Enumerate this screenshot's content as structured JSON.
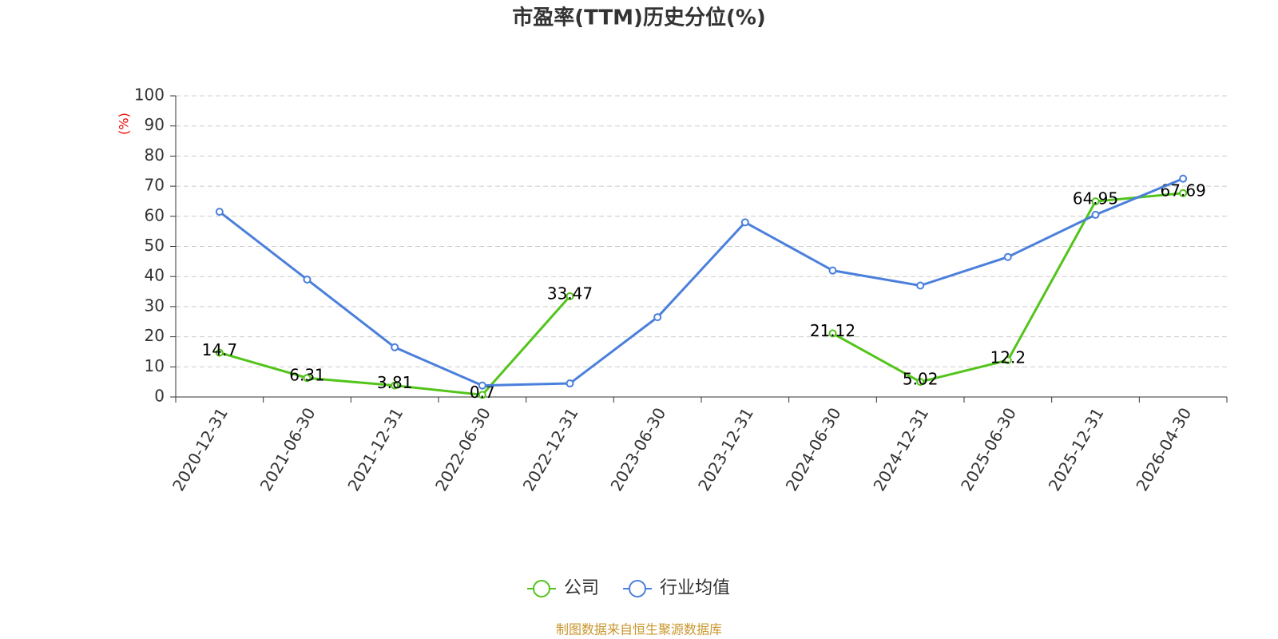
{
  "chart_data": {
    "type": "line",
    "title": "市盈率(TTM)历史分位(%)",
    "y_label": "(%)",
    "categories": [
      "2020-12-31",
      "2021-06-30",
      "2021-12-31",
      "2022-06-30",
      "2022-12-31",
      "2023-06-30",
      "2023-12-31",
      "2024-06-30",
      "2024-12-31",
      "2025-06-30",
      "2025-12-31",
      "2026-04-30"
    ],
    "series": [
      {
        "name": "公司",
        "color": "#52c41a",
        "values": [
          14.7,
          6.31,
          3.81,
          0.7,
          33.47,
          null,
          null,
          21.12,
          5.02,
          12.2,
          64.95,
          67.69
        ],
        "show_labels": true
      },
      {
        "name": "行业均值",
        "color": "#4a7fdc",
        "values": [
          61.5,
          39,
          16.5,
          3.8,
          4.5,
          26.5,
          58,
          42,
          37,
          46.5,
          60.5,
          72.5
        ],
        "show_labels": false
      }
    ],
    "ylim": [
      0,
      100
    ],
    "yticks": [
      0,
      10,
      20,
      30,
      40,
      50,
      60,
      70,
      80,
      90,
      100
    ],
    "grid": true,
    "legend": "bottom",
    "source": "制图数据来自恒生聚源数据库"
  }
}
